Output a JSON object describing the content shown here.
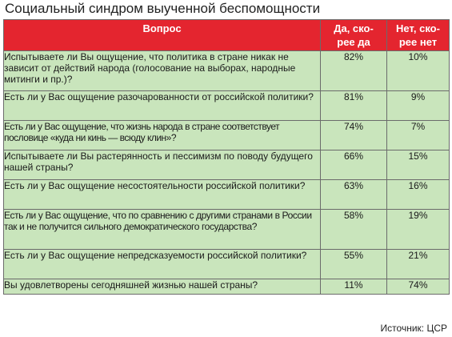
{
  "title": "Социальный синдром выученной беспомощности",
  "table": {
    "headers": {
      "question": "Вопрос",
      "yes": "Да, ско-\nрее да",
      "no": "Нет, ско-\nрее нет"
    },
    "rows": [
      {
        "question": "Испытываете ли Вы ощущение, что политика в стране никак не зависит от действий народа (голосование на выборах, народные митинги и пр.)?",
        "yes": "82%",
        "no": "10%"
      },
      {
        "question": "Есть ли у Вас ощущение разочарованности от российской политики?",
        "yes": "81%",
        "no": "9%"
      },
      {
        "question": "Есть ли у Вас ощущение, что жизнь народа в стране соответствует пословице «куда ни кинь — всюду клин»?",
        "yes": "74%",
        "no": "7%"
      },
      {
        "question": "Испытываете ли Вы растерянность и пессимизм по поводу будущего нашей страны?",
        "yes": "66%",
        "no": "15%"
      },
      {
        "question": "Есть ли у Вас ощущение несостоятельности российской политики?",
        "yes": "63%",
        "no": "16%"
      },
      {
        "question": "Есть ли у Вас ощущение, что по сравнению с другими странами в России так и не получится сильного демократического государства?",
        "yes": "58%",
        "no": "19%"
      },
      {
        "question": "Есть ли у Вас ощущение непредсказуемости российской политики?",
        "yes": "55%",
        "no": "21%"
      },
      {
        "question": "Вы удовлетворены сегодняшней жизнью нашей страны?",
        "yes": "11%",
        "no": "74%"
      }
    ]
  },
  "source": "Источник: ЦСР",
  "colors": {
    "header_bg": "#e4252f",
    "row_bg": "#c9e5bc",
    "border": "#6b6b6b"
  }
}
